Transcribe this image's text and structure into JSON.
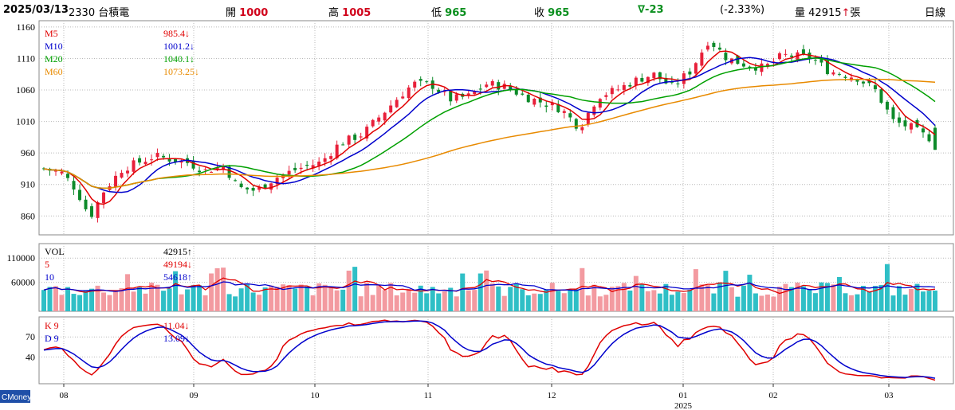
{
  "header": {
    "date": "2025/03/13",
    "stock": "2330 台積電",
    "open_label": "開",
    "open": "1000",
    "high_label": "高",
    "high": "1005",
    "low_label": "低",
    "low": "965",
    "close_label": "收",
    "close": "965",
    "change": "∇-23",
    "change_pct": "(-2.33%)",
    "volume_label": "量",
    "volume": "42915",
    "volume_arrow": "↑",
    "volume_unit": "張",
    "period": "日線"
  },
  "footer": {
    "brand": "CMoney"
  },
  "colors": {
    "up": "#e8203a",
    "down": "#0d8a2a",
    "ma5": "#e00000",
    "ma10": "#0000cc",
    "ma20": "#00a000",
    "ma60": "#e88a00",
    "vol_up": "#f39aa0",
    "vol_down": "#2fbfc6",
    "k": "#e00000",
    "d": "#0000cc"
  },
  "chart_data": [
    {
      "type": "candlestick",
      "ylim": [
        830,
        1170
      ],
      "yticks": [
        1160,
        1110,
        1060,
        1010,
        960,
        910,
        860
      ],
      "x_months": [
        "08",
        "09",
        "10",
        "11",
        "12",
        "01",
        "02",
        "03"
      ],
      "x_year": "2025",
      "legend": [
        {
          "name": "M5",
          "value": "985.4",
          "arrow": "↓"
        },
        {
          "name": "M10",
          "value": "1001.2",
          "arrow": "↓"
        },
        {
          "name": "M20",
          "value": "1040.1",
          "arrow": "↓"
        },
        {
          "name": "M60",
          "value": "1073.25",
          "arrow": "↓"
        }
      ],
      "last": {
        "open": 1000,
        "high": 1005,
        "low": 965,
        "close": 965
      }
    },
    {
      "type": "bar",
      "ylim": [
        0,
        140000
      ],
      "yticks": [
        110000,
        60000
      ],
      "legend": [
        {
          "name": "VOL",
          "value": "42915",
          "arrow": "↑"
        },
        {
          "name": "5",
          "value": "49194",
          "arrow": "↓"
        },
        {
          "name": "10",
          "value": "54618",
          "arrow": "↑"
        }
      ]
    },
    {
      "type": "line",
      "ylim": [
        0,
        100
      ],
      "yticks": [
        70,
        40
      ],
      "legend": [
        {
          "name": "K 9",
          "value": "11.04",
          "arrow": "↓"
        },
        {
          "name": "D 9",
          "value": "13.09",
          "arrow": "↓"
        }
      ]
    }
  ]
}
